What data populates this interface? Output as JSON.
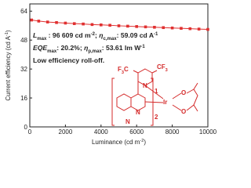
{
  "chart_data": {
    "type": "line",
    "x_label": [
      {
        "text": "Luminance (cd m"
      },
      {
        "text": "-2",
        "pos": "sup"
      },
      {
        "text": ")"
      }
    ],
    "y_label": [
      {
        "text": "Current efficiency (cd A"
      },
      {
        "text": "-1",
        "pos": "sup"
      },
      {
        "text": ")"
      }
    ],
    "annotations": [
      [
        {
          "text": "L",
          "italic": true
        },
        {
          "text": "max",
          "pos": "sub"
        },
        {
          "text": " : 96 609 cd m"
        },
        {
          "text": "-2",
          "pos": "sup"
        },
        {
          "text": "; "
        },
        {
          "text": "η",
          "italic": true
        },
        {
          "text": "c,max",
          "pos": "sub"
        },
        {
          "text": ": 59.09 cd A"
        },
        {
          "text": "-1",
          "pos": "sup"
        }
      ],
      [
        {
          "text": "EQE",
          "italic": true
        },
        {
          "text": "max",
          "pos": "sub"
        },
        {
          "text": ": 20.2%; "
        },
        {
          "text": "η",
          "italic": true
        },
        {
          "text": "p,max",
          "pos": "sub"
        },
        {
          "text": ": 53.61 lm W"
        },
        {
          "text": "-1",
          "pos": "sup"
        }
      ],
      [
        {
          "text": "Low efficiency roll-off."
        }
      ]
    ],
    "structure_labels": {
      "left_cf3": [
        {
          "text": "F"
        },
        {
          "text": "3",
          "pos": "sub"
        },
        {
          "text": "C"
        }
      ],
      "right_cf3": [
        {
          "text": "CF"
        },
        {
          "text": "3",
          "pos": "sub"
        }
      ],
      "n_pyridine": "N",
      "n_quin_a": "N",
      "n_quin_b": "N",
      "metal": "Ir",
      "o_top": "O",
      "o_bottom": "O",
      "count_1": "1",
      "count_2": "2"
    },
    "x": [
      100,
      500,
      1000,
      1500,
      2000,
      2500,
      3000,
      3500,
      4000,
      4500,
      5000,
      5500,
      6000,
      6500,
      7000,
      7500,
      8000,
      8500,
      9000,
      9500,
      10000
    ],
    "series": [
      {
        "name": "Current efficiency",
        "color": "#e03030",
        "values": [
          59.1,
          58.5,
          58.0,
          57.7,
          57.4,
          57.1,
          56.9,
          56.6,
          56.4,
          56.2,
          55.9,
          55.7,
          55.5,
          55.3,
          55.1,
          54.9,
          54.7,
          54.5,
          54.3,
          54.1,
          53.9
        ]
      }
    ],
    "xlim": [
      0,
      10000
    ],
    "xticks": [
      0,
      2000,
      4000,
      6000,
      8000,
      10000
    ],
    "ylim": [
      0,
      68
    ],
    "yticks": [
      0,
      16,
      32,
      48,
      64
    ]
  }
}
